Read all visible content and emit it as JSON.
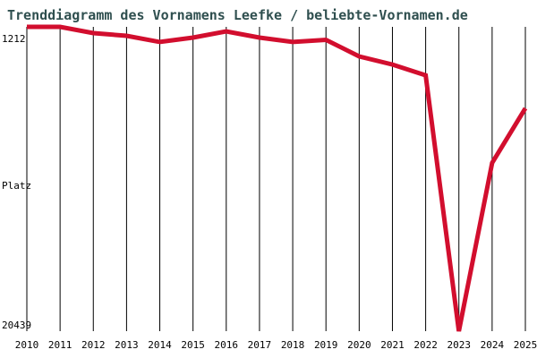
{
  "title": "Trenddiagramm des Vornamens Leefke / beliebte-Vornamen.de",
  "colors": {
    "line": "#d20e2e",
    "title": "#2f4f4f",
    "grid": "#000000",
    "tick_label": "#000000",
    "background": "#ffffff"
  },
  "y_axis": {
    "top_label": "1212",
    "middle_label": "Platz",
    "bottom_label": "20439"
  },
  "chart_data": {
    "type": "line",
    "title": "Trenddiagramm des Vornamens Leefke / beliebte-Vornamen.de",
    "ylabel": "Platz",
    "xlabel": "",
    "categories": [
      "2010",
      "2011",
      "2012",
      "2013",
      "2014",
      "2015",
      "2016",
      "2017",
      "2018",
      "2019",
      "2020",
      "2021",
      "2022",
      "2023",
      "2024",
      "2025"
    ],
    "series": [
      {
        "name": "Platz",
        "values": [
          1212,
          1212,
          1610,
          1780,
          2170,
          1890,
          1500,
          1890,
          2170,
          2030,
          3080,
          3590,
          4270,
          20439,
          9800,
          6360
        ]
      }
    ],
    "ylim": [
      1212,
      20439
    ],
    "y_axis_inverted": true,
    "grid": "vertical-only",
    "legend": "none"
  }
}
